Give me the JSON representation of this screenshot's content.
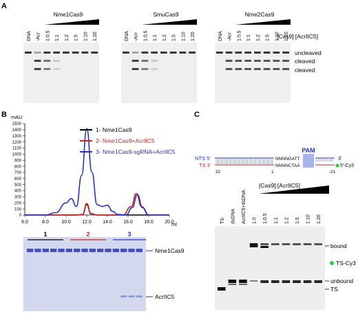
{
  "panels": {
    "a": {
      "label": "A",
      "gels": [
        {
          "title": "Nme1Cas9",
          "lanes": [
            "DNA",
            "-Acr",
            "1:0.5",
            "1:1",
            "1:2",
            "1:5",
            "1:10",
            "1:20"
          ]
        },
        {
          "title": "SmuCas9",
          "lanes": [
            "DNA",
            "-Acr",
            "1:0.5",
            "1:1",
            "1:2",
            "1:5",
            "1:10",
            "1:20"
          ]
        },
        {
          "title": "Nme2Cas9",
          "lanes": [
            "DNA",
            "-Acr",
            "1:0.5",
            "1:1",
            "1:2",
            "1:5",
            "1:10",
            "1:20"
          ]
        }
      ],
      "ratio_label": "[Cas9]:[AcrIIC5]",
      "band_labels": [
        "uncleaved",
        "cleaved",
        "cleaved"
      ]
    },
    "b": {
      "label": "B",
      "chart_data": {
        "type": "line",
        "ylabel": "mAU",
        "xlabel": "ml",
        "ylim": [
          0,
          1500
        ],
        "xlim": [
          6,
          20
        ],
        "y_ticks": [
          "1500",
          "1400",
          "1300",
          "1200",
          "1100",
          "1000",
          "900",
          "800",
          "700",
          "600",
          "500",
          "400",
          "300",
          "200",
          "100",
          "0"
        ],
        "x_ticks": [
          "6.0",
          "8.0",
          "10.0",
          "12.0",
          "14.0",
          "16.0",
          "18.0",
          "20.0"
        ],
        "grid": false,
        "legend_position": "top-right",
        "series": [
          {
            "name": "1- Nme1Cas9",
            "color": "#000000",
            "x": [
              6,
              10,
              11,
              11.6,
              12,
              12.4,
              13,
              15.5,
              16.3,
              16.8,
              17.3,
              18,
              20
            ],
            "y": [
              0,
              0,
              0,
              10,
              175,
              20,
              0,
              0,
              0,
              0,
              0,
              0,
              0
            ]
          },
          {
            "name": "2- Nme1Cas9+AcrIIC5",
            "color": "#cc2222",
            "x": [
              6,
              10,
              11,
              11.6,
              12,
              12.4,
              13,
              15.5,
              16.3,
              16.8,
              17.3,
              18,
              20
            ],
            "y": [
              0,
              0,
              0,
              10,
              190,
              25,
              0,
              0,
              140,
              355,
              140,
              0,
              0
            ]
          },
          {
            "name": "3- Nme1Cas9-sgRNA+AcrIIC5",
            "color": "#2233cc",
            "x": [
              6,
              8,
              9,
              10,
              10.5,
              11,
              11.5,
              12,
              12.5,
              13,
              13.5,
              14,
              14.5,
              15,
              15.8,
              16.4,
              16.9,
              17.4,
              18,
              20
            ],
            "y": [
              0,
              0,
              40,
              200,
              270,
              140,
              650,
              1420,
              700,
              170,
              140,
              160,
              60,
              10,
              0,
              120,
              335,
              120,
              0,
              0
            ]
          }
        ]
      },
      "sds_gel": {
        "fraction_groups": [
          "1",
          "2",
          "3"
        ],
        "fraction_group_colors": [
          "#000000",
          "#cc2222",
          "#2233cc"
        ],
        "band_labels": [
          "Nme1Cas9",
          "AcrIIC5"
        ]
      }
    },
    "c": {
      "label": "C",
      "diagram": {
        "nts_label": "NTS 5'",
        "ts_label": "TS 3'",
        "right_top": "3'",
        "right_bottom": "5'-Cy3",
        "pam_label": "PAM",
        "nts_seq": "NNNNGATT",
        "ts_seq": "NNNNCTAA",
        "positions": [
          "32",
          "1",
          "-21"
        ]
      },
      "gel": {
        "lanes": [
          "TS",
          "dsDNA",
          "AcrIIC5+dsDNA",
          "1:0",
          "1:0.5",
          "1:1",
          "1:2",
          "1:5",
          "1:10",
          "1:20"
        ],
        "ratio_label": "[Cas9]:[AcrIIC5]",
        "band_labels": [
          "bound",
          "TS-Cy3",
          "unbound",
          "TS"
        ]
      }
    }
  }
}
